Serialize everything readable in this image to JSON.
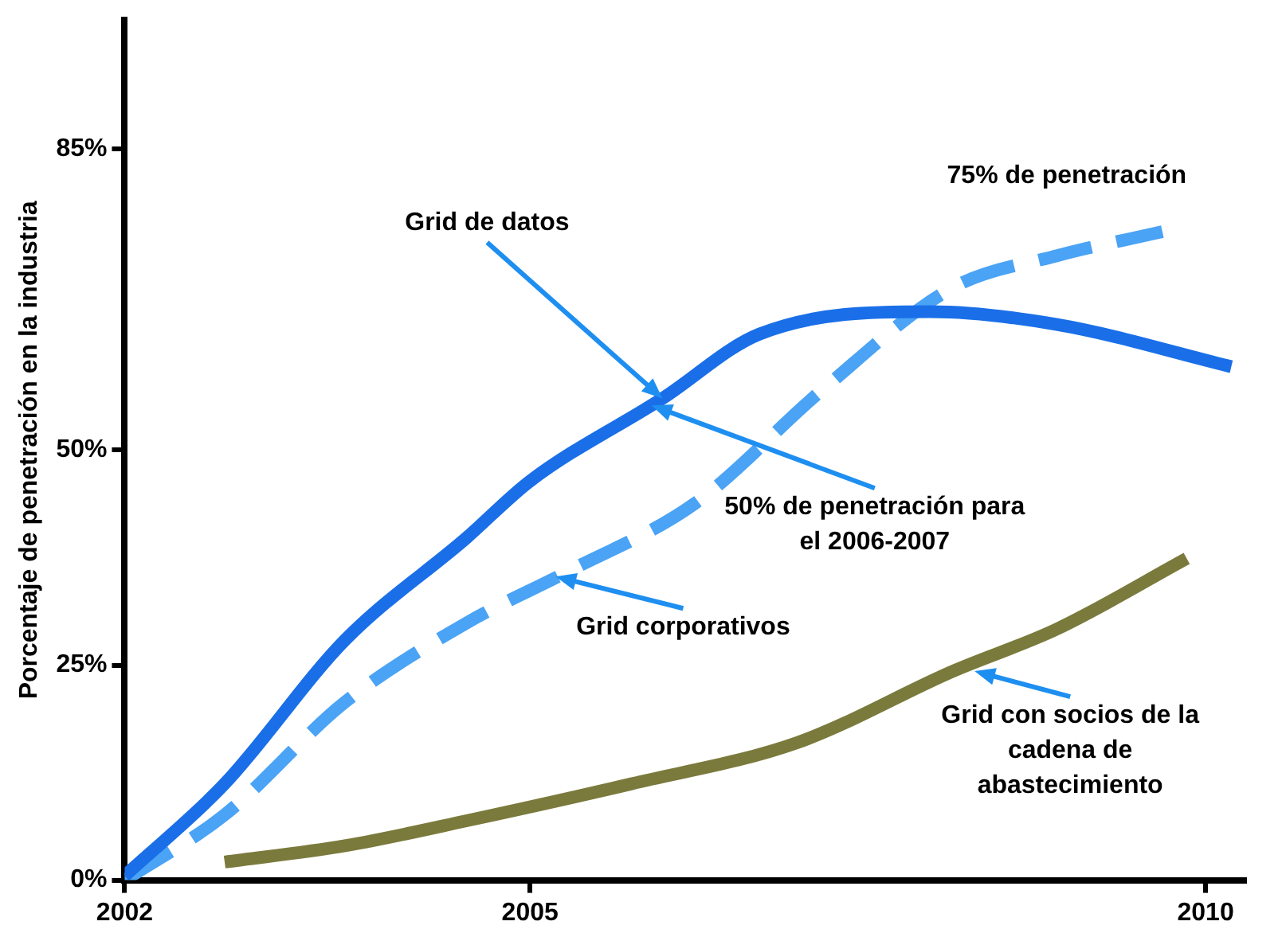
{
  "chart_data": {
    "type": "line",
    "ylabel": "Porcentaje de penetración en la industria",
    "xlim": [
      2002,
      2010.3
    ],
    "xticks": [
      2002,
      2005,
      2010
    ],
    "ylim": [
      0,
      100
    ],
    "yticks": [
      {
        "value": 0,
        "label": "0%"
      },
      {
        "value": 25,
        "label": "25%"
      },
      {
        "value": 50,
        "label": "50%"
      },
      {
        "value": 85,
        "label": "85%"
      }
    ],
    "grid": false,
    "legend": false,
    "marker": "none",
    "series": [
      {
        "color": "#1a6fe8",
        "line_style": "solid",
        "x": [
          2002,
          2002.74,
          2003.63,
          2004.53,
          2005,
          2005.98,
          2006.7,
          2007.96,
          2008.9,
          2010.19
        ],
        "values": [
          0.5,
          11.2,
          27.9,
          39.8,
          46.4,
          56.0,
          63.5,
          66.1,
          64.6,
          59.7
        ]
      },
      {
        "color": "#4aa3f5",
        "line_style": "dashed",
        "x": [
          2002,
          2002.74,
          2003.63,
          2004.53,
          2005.27,
          2006.22,
          2007.17,
          2008.13,
          2008.9,
          2009.68
        ],
        "values": [
          0,
          7.6,
          20.7,
          29.9,
          35.8,
          43.8,
          57.1,
          68.9,
          72.6,
          75.4
        ]
      },
      {
        "color": "#7a7a3c",
        "line_style": "solid",
        "x": [
          2002.74,
          2003.63,
          2004.53,
          2005.75,
          2006.98,
          2008.13,
          2008.9,
          2009.86
        ],
        "values": [
          2.1,
          4.0,
          6.9,
          11.2,
          16.0,
          24.3,
          29.2,
          37.4
        ]
      }
    ],
    "annotations": [
      {
        "text": "Grid de datos",
        "x": 2005.98,
        "y": 56.0
      },
      {
        "text": "75% de penetración",
        "x": 2009.68,
        "y": 75.4
      },
      {
        "text": "50% de penetración para\nel 2006-2007",
        "x": 2005.9,
        "y": 55.2
      },
      {
        "text": "Grid corporativos",
        "x": 2005.19,
        "y": 35.3
      },
      {
        "text": "Grid con socios de la\ncadena de\nabastecimiento",
        "x": 2008.29,
        "y": 24.3
      }
    ]
  }
}
